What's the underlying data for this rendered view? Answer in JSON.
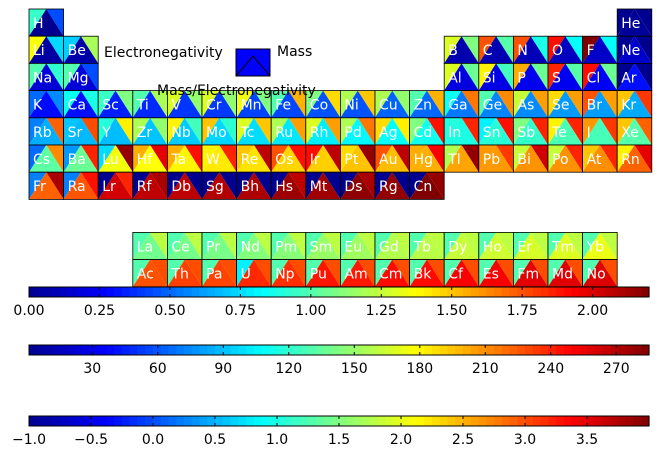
{
  "chart_data": {
    "type": "heatmap",
    "title": "",
    "legend": {
      "labels": {
        "electronegativity": "Electronegativity",
        "mass": "Mass",
        "ratio": "Mass/Electronegativity"
      },
      "swatch_color": "#0000ff"
    },
    "colormap": [
      "#00008f",
      "#0000ff",
      "#0080ff",
      "#00ffff",
      "#80ff80",
      "#ffff00",
      "#ff8000",
      "#ff0000",
      "#800000"
    ],
    "colorbars": [
      {
        "name": "electronegativity",
        "min": 0.0,
        "max": 2.2,
        "tick_values": [
          0,
          0.25,
          0.5,
          0.75,
          1.0,
          1.25,
          1.5,
          1.75,
          2.0
        ],
        "tick_labels": [
          "0.00",
          "0.25",
          "0.50",
          "0.75",
          "1.00",
          "1.25",
          "1.50",
          "1.75",
          "2.00"
        ]
      },
      {
        "name": "mass",
        "min": 1,
        "max": 285,
        "tick_values": [
          30,
          60,
          90,
          120,
          150,
          180,
          210,
          240,
          270
        ],
        "tick_labels": [
          "30",
          "60",
          "90",
          "120",
          "150",
          "180",
          "210",
          "240",
          "270"
        ]
      },
      {
        "name": "mass_per_electronegativity",
        "min": -1.0,
        "max": 4.0,
        "tick_values": [
          -1.0,
          -0.5,
          0,
          0.5,
          1.0,
          1.5,
          2.0,
          2.5,
          3.0,
          3.5
        ],
        "tick_labels": [
          "−1.0",
          "−0.5",
          "0.0",
          "0.5",
          "1.0",
          "1.5",
          "2.0",
          "2.5",
          "3.0",
          "3.5"
        ]
      }
    ],
    "elements": [
      {
        "s": "H",
        "r": 0,
        "c": 0,
        "en": 0.94,
        "mass": 1,
        "ratio": 0.0
      },
      {
        "s": "He",
        "r": 0,
        "c": 17,
        "en": 0.0,
        "mass": 4,
        "ratio": -1.0
      },
      {
        "s": "Li",
        "r": 1,
        "c": 0,
        "en": 1.36,
        "mass": 7,
        "ratio": 0.7
      },
      {
        "s": "Be",
        "r": 1,
        "c": 1,
        "en": 0.72,
        "mass": 9,
        "ratio": 1.7
      },
      {
        "s": "B",
        "r": 1,
        "c": 12,
        "en": 1.3,
        "mass": 11,
        "ratio": 1.5
      },
      {
        "s": "C",
        "r": 1,
        "c": 13,
        "en": 1.75,
        "mass": 12,
        "ratio": 1.3
      },
      {
        "s": "N",
        "r": 1,
        "c": 14,
        "en": 1.75,
        "mass": 14,
        "ratio": 1.0
      },
      {
        "s": "O",
        "r": 1,
        "c": 15,
        "en": 1.9,
        "mass": 16,
        "ratio": 0.9
      },
      {
        "s": "F",
        "r": 1,
        "c": 16,
        "en": 2.2,
        "mass": 19,
        "ratio": 0.9
      },
      {
        "s": "Ne",
        "r": 1,
        "c": 17,
        "en": 0.0,
        "mass": 20,
        "ratio": -1.0
      },
      {
        "s": "Na",
        "r": 2,
        "c": 0,
        "en": 1.0,
        "mass": 23,
        "ratio": 1.1
      },
      {
        "s": "Mg",
        "r": 2,
        "c": 1,
        "en": 1.0,
        "mass": 24,
        "ratio": 0.0
      },
      {
        "s": "Al",
        "r": 2,
        "c": 12,
        "en": 1.3,
        "mass": 27,
        "ratio": 1.4
      },
      {
        "s": "Si",
        "r": 2,
        "c": 13,
        "en": 1.4,
        "mass": 28,
        "ratio": 1.2
      },
      {
        "s": "P",
        "r": 2,
        "c": 14,
        "en": 1.55,
        "mass": 31,
        "ratio": 1.4
      },
      {
        "s": "S",
        "r": 2,
        "c": 15,
        "en": 1.85,
        "mass": 32,
        "ratio": 1.3
      },
      {
        "s": "Cl",
        "r": 2,
        "c": 16,
        "en": 1.9,
        "mass": 35,
        "ratio": 1.4
      },
      {
        "s": "Ar",
        "r": 2,
        "c": 17,
        "en": 0.0,
        "mass": 40,
        "ratio": -1.0
      },
      {
        "s": "K",
        "r": 3,
        "c": 0,
        "en": 0.5,
        "mass": 39,
        "ratio": 0.3
      },
      {
        "s": "Ca",
        "r": 3,
        "c": 1,
        "en": 0.85,
        "mass": 40,
        "ratio": 1.0
      },
      {
        "s": "Sc",
        "r": 3,
        "c": 2,
        "en": 0.95,
        "mass": 45,
        "ratio": 1.5
      },
      {
        "s": "Ti",
        "r": 3,
        "c": 3,
        "en": 1.0,
        "mass": 48,
        "ratio": 1.7
      },
      {
        "s": "V",
        "r": 3,
        "c": 4,
        "en": 1.3,
        "mass": 51,
        "ratio": 1.6
      },
      {
        "s": "Cr",
        "r": 3,
        "c": 5,
        "en": 1.3,
        "mass": 52,
        "ratio": 1.6
      },
      {
        "s": "Mn",
        "r": 3,
        "c": 6,
        "en": 1.35,
        "mass": 55,
        "ratio": 1.5
      },
      {
        "s": "Fe",
        "r": 3,
        "c": 7,
        "en": 1.0,
        "mass": 56,
        "ratio": 2.5
      },
      {
        "s": "Co",
        "r": 3,
        "c": 8,
        "en": 1.1,
        "mass": 59,
        "ratio": 2.3
      },
      {
        "s": "Ni",
        "r": 3,
        "c": 9,
        "en": 1.2,
        "mass": 59,
        "ratio": 2.4
      },
      {
        "s": "Cu",
        "r": 3,
        "c": 10,
        "en": 1.2,
        "mass": 64,
        "ratio": 1.6
      },
      {
        "s": "Zn",
        "r": 3,
        "c": 11,
        "en": 1.0,
        "mass": 65,
        "ratio": 2.5
      },
      {
        "s": "Ga",
        "r": 3,
        "c": 12,
        "en": 0.85,
        "mass": 70,
        "ratio": 2.8
      },
      {
        "s": "Ge",
        "r": 3,
        "c": 13,
        "en": 1.0,
        "mass": 73,
        "ratio": 2.7
      },
      {
        "s": "As",
        "r": 3,
        "c": 14,
        "en": 1.25,
        "mass": 75,
        "ratio": 2.6
      },
      {
        "s": "Se",
        "r": 3,
        "c": 15,
        "en": 1.45,
        "mass": 79,
        "ratio": 2.6
      },
      {
        "s": "Br",
        "r": 3,
        "c": 16,
        "en": 1.75,
        "mass": 80,
        "ratio": 2.6
      },
      {
        "s": "Kr",
        "r": 3,
        "c": 17,
        "en": 1.5,
        "mass": 84,
        "ratio": 3.1
      },
      {
        "s": "Rb",
        "r": 4,
        "c": 0,
        "en": 0.55,
        "mass": 85,
        "ratio": 2.9
      },
      {
        "s": "Sr",
        "r": 4,
        "c": 1,
        "en": 0.7,
        "mass": 88,
        "ratio": 3.0
      },
      {
        "s": "Y",
        "r": 4,
        "c": 2,
        "en": 0.9,
        "mass": 89,
        "ratio": 2.2
      },
      {
        "s": "Zr",
        "r": 4,
        "c": 3,
        "en": 1.2,
        "mass": 91,
        "ratio": 1.6
      },
      {
        "s": "Nb",
        "r": 4,
        "c": 4,
        "en": 1.4,
        "mass": 93,
        "ratio": 1.2
      },
      {
        "s": "Mo",
        "r": 4,
        "c": 5,
        "en": 1.5,
        "mass": 96,
        "ratio": 1.1
      },
      {
        "s": "Tc",
        "r": 4,
        "c": 6,
        "en": 1.3,
        "mass": 98,
        "ratio": 2.4
      },
      {
        "s": "Ru",
        "r": 4,
        "c": 7,
        "en": 1.2,
        "mass": 101,
        "ratio": 2.6
      },
      {
        "s": "Rh",
        "r": 4,
        "c": 8,
        "en": 1.3,
        "mass": 103,
        "ratio": 2.6
      },
      {
        "s": "Pd",
        "r": 4,
        "c": 9,
        "en": 1.2,
        "mass": 106,
        "ratio": 2.8
      },
      {
        "s": "Ag",
        "r": 4,
        "c": 10,
        "en": 1.45,
        "mass": 108,
        "ratio": 2.2
      },
      {
        "s": "Cd",
        "r": 4,
        "c": 11,
        "en": 1.1,
        "mass": 112,
        "ratio": 3.3
      },
      {
        "s": "In",
        "r": 4,
        "c": 12,
        "en": 0.9,
        "mass": 115,
        "ratio": 3.2
      },
      {
        "s": "Sn",
        "r": 4,
        "c": 13,
        "en": 0.8,
        "mass": 119,
        "ratio": 3.3
      },
      {
        "s": "Sb",
        "r": 4,
        "c": 14,
        "en": 1.1,
        "mass": 122,
        "ratio": 3.2
      },
      {
        "s": "Te",
        "r": 4,
        "c": 15,
        "en": 1.4,
        "mass": 128,
        "ratio": 3.2
      },
      {
        "s": "I",
        "r": 4,
        "c": 16,
        "en": 1.6,
        "mass": 127,
        "ratio": 3.1
      },
      {
        "s": "Xe",
        "r": 4,
        "c": 17,
        "en": 1.5,
        "mass": 131,
        "ratio": 2.9
      },
      {
        "s": "Cs",
        "r": 5,
        "c": 0,
        "en": 0.5,
        "mass": 133,
        "ratio": 2.7
      },
      {
        "s": "Ba",
        "r": 5,
        "c": 1,
        "en": 0.6,
        "mass": 137,
        "ratio": 3.2
      },
      {
        "s": "Lu",
        "r": 5,
        "c": 2,
        "en": 0.75,
        "mass": 175,
        "ratio": 3.9
      },
      {
        "s": "Hf",
        "r": 5,
        "c": 3,
        "en": 1.55,
        "mass": 178,
        "ratio": 3.5
      },
      {
        "s": "Ta",
        "r": 5,
        "c": 4,
        "en": 1.55,
        "mass": 181,
        "ratio": 3.3
      },
      {
        "s": "W",
        "r": 5,
        "c": 5,
        "en": 1.4,
        "mass": 184,
        "ratio": 3.2
      },
      {
        "s": "Re",
        "r": 5,
        "c": 6,
        "en": 1.5,
        "mass": 186,
        "ratio": 3.7
      },
      {
        "s": "Os",
        "r": 5,
        "c": 7,
        "en": 1.75,
        "mass": 190,
        "ratio": 3.3
      },
      {
        "s": "Ir",
        "r": 5,
        "c": 8,
        "en": 1.9,
        "mass": 192,
        "ratio": 3.7
      },
      {
        "s": "Pt",
        "r": 5,
        "c": 9,
        "en": 1.45,
        "mass": 195,
        "ratio": 3.9
      },
      {
        "s": "Au",
        "r": 5,
        "c": 10,
        "en": 1.75,
        "mass": 197,
        "ratio": 3.7
      },
      {
        "s": "Hg",
        "r": 5,
        "c": 11,
        "en": 1.55,
        "mass": 201,
        "ratio": 3.4
      },
      {
        "s": "Tl",
        "r": 5,
        "c": 12,
        "en": 1.2,
        "mass": 204,
        "ratio": 3.9
      },
      {
        "s": "Pb",
        "r": 5,
        "c": 13,
        "en": 1.6,
        "mass": 207,
        "ratio": 3.1
      },
      {
        "s": "Bi",
        "r": 5,
        "c": 14,
        "en": 1.25,
        "mass": 209,
        "ratio": 3.6
      },
      {
        "s": "Po",
        "r": 5,
        "c": 15,
        "en": 1.25,
        "mass": 209,
        "ratio": 3.2
      },
      {
        "s": "At",
        "r": 5,
        "c": 16,
        "en": 1.5,
        "mass": 210,
        "ratio": 3.2
      },
      {
        "s": "Rn",
        "r": 5,
        "c": 17,
        "en": 1.4,
        "mass": 222,
        "ratio": 3.5
      },
      {
        "s": "Fr",
        "r": 6,
        "c": 0,
        "en": 0.55,
        "mass": 223,
        "ratio": 3.8
      },
      {
        "s": "Ra",
        "r": 6,
        "c": 1,
        "en": 0.55,
        "mass": 226,
        "ratio": 3.3
      },
      {
        "s": "Lr",
        "r": 6,
        "c": 2,
        "en": 0.0,
        "mass": 262,
        "ratio": 3.2
      },
      {
        "s": "Rf",
        "r": 6,
        "c": 3,
        "en": 0.0,
        "mass": 267,
        "ratio": 3.8
      },
      {
        "s": "Db",
        "r": 6,
        "c": 4,
        "en": 0.0,
        "mass": 268,
        "ratio": -1.0
      },
      {
        "s": "Sg",
        "r": 6,
        "c": 5,
        "en": 0.0,
        "mass": 271,
        "ratio": -1.0
      },
      {
        "s": "Bh",
        "r": 6,
        "c": 6,
        "en": 0.0,
        "mass": 272,
        "ratio": -1.0
      },
      {
        "s": "Hs",
        "r": 6,
        "c": 7,
        "en": 0.0,
        "mass": 277,
        "ratio": 3.7
      },
      {
        "s": "Mt",
        "r": 6,
        "c": 8,
        "en": 0.0,
        "mass": 276,
        "ratio": -1.0
      },
      {
        "s": "Ds",
        "r": 6,
        "c": 9,
        "en": 0.0,
        "mass": 281,
        "ratio": 3.8
      },
      {
        "s": "Rg",
        "r": 6,
        "c": 10,
        "en": 0.0,
        "mass": 280,
        "ratio": -1.0
      },
      {
        "s": "Cn",
        "r": 6,
        "c": 11,
        "en": 0.0,
        "mass": 285,
        "ratio": 3.9
      },
      {
        "s": "La",
        "r": 8,
        "c": 3,
        "en": 1.0,
        "mass": 139,
        "ratio": 1.8
      },
      {
        "s": "Ce",
        "r": 8,
        "c": 4,
        "en": 1.0,
        "mass": 140,
        "ratio": 1.8
      },
      {
        "s": "Pr",
        "r": 8,
        "c": 5,
        "en": 1.0,
        "mass": 141,
        "ratio": 1.8
      },
      {
        "s": "Nd",
        "r": 8,
        "c": 6,
        "en": 1.0,
        "mass": 144,
        "ratio": 1.8
      },
      {
        "s": "Pm",
        "r": 8,
        "c": 7,
        "en": 1.0,
        "mass": 145,
        "ratio": 1.8
      },
      {
        "s": "Sm",
        "r": 8,
        "c": 8,
        "en": 1.0,
        "mass": 150,
        "ratio": 1.8
      },
      {
        "s": "Eu",
        "r": 8,
        "c": 9,
        "en": 1.0,
        "mass": 152,
        "ratio": 1.8
      },
      {
        "s": "Gd",
        "r": 8,
        "c": 10,
        "en": 1.0,
        "mass": 157,
        "ratio": 1.8
      },
      {
        "s": "Tb",
        "r": 8,
        "c": 11,
        "en": 1.0,
        "mass": 159,
        "ratio": 1.8
      },
      {
        "s": "Dy",
        "r": 8,
        "c": 12,
        "en": 1.0,
        "mass": 163,
        "ratio": 1.8
      },
      {
        "s": "Ho",
        "r": 8,
        "c": 13,
        "en": 1.0,
        "mass": 165,
        "ratio": 1.8
      },
      {
        "s": "Er",
        "r": 8,
        "c": 14,
        "en": 1.0,
        "mass": 167,
        "ratio": 1.8
      },
      {
        "s": "Tm",
        "r": 8,
        "c": 15,
        "en": 1.0,
        "mass": 169,
        "ratio": 1.8
      },
      {
        "s": "Yb",
        "r": 8,
        "c": 16,
        "en": 1.0,
        "mass": 173,
        "ratio": 1.8
      },
      {
        "s": "Ac",
        "r": 9,
        "c": 3,
        "en": 1.0,
        "mass": 227,
        "ratio": 3.0
      },
      {
        "s": "Th",
        "r": 9,
        "c": 4,
        "en": 1.0,
        "mass": 232,
        "ratio": 3.0
      },
      {
        "s": "Pa",
        "r": 9,
        "c": 5,
        "en": 1.0,
        "mass": 231,
        "ratio": 3.0
      },
      {
        "s": "U",
        "r": 9,
        "c": 6,
        "en": 0.8,
        "mass": 238,
        "ratio": 3.0
      },
      {
        "s": "Np",
        "r": 9,
        "c": 7,
        "en": 1.0,
        "mass": 237,
        "ratio": 3.0
      },
      {
        "s": "Pu",
        "r": 9,
        "c": 8,
        "en": 1.0,
        "mass": 244,
        "ratio": 3.0
      },
      {
        "s": "Am",
        "r": 9,
        "c": 9,
        "en": 1.0,
        "mass": 243,
        "ratio": 3.0
      },
      {
        "s": "Cm",
        "r": 9,
        "c": 10,
        "en": 1.0,
        "mass": 247,
        "ratio": 3.0
      },
      {
        "s": "Bk",
        "r": 9,
        "c": 11,
        "en": 1.0,
        "mass": 247,
        "ratio": 3.0
      },
      {
        "s": "Cf",
        "r": 9,
        "c": 12,
        "en": 1.0,
        "mass": 251,
        "ratio": 3.0
      },
      {
        "s": "Es",
        "r": 9,
        "c": 13,
        "en": 1.0,
        "mass": 252,
        "ratio": 3.0
      },
      {
        "s": "Fm",
        "r": 9,
        "c": 14,
        "en": 1.0,
        "mass": 257,
        "ratio": 3.0
      },
      {
        "s": "Md",
        "r": 9,
        "c": 15,
        "en": 1.0,
        "mass": 258,
        "ratio": 3.0
      },
      {
        "s": "No",
        "r": 9,
        "c": 16,
        "en": 1.0,
        "mass": 259,
        "ratio": 3.0
      }
    ]
  }
}
